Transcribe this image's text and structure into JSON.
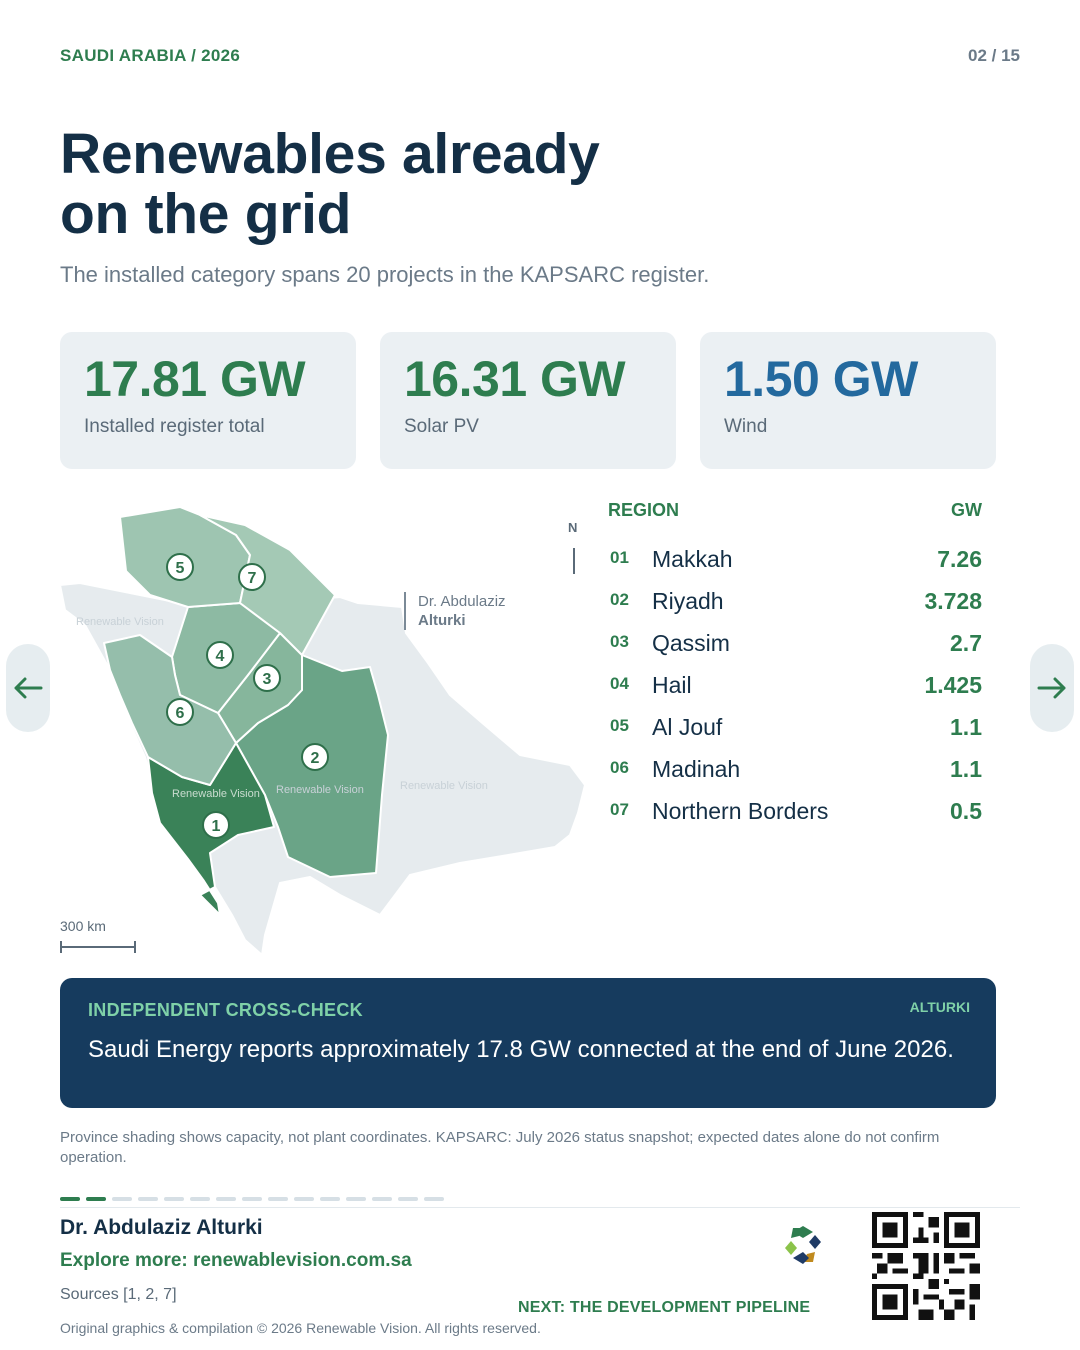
{
  "header": {
    "eyebrow": "SAUDI ARABIA / 2026",
    "page": "02 / 15"
  },
  "title": {
    "line1": "Renewables already",
    "line2": "on the grid"
  },
  "subtitle": "The installed category spans 20 projects in the KAPSARC register.",
  "kpis": [
    {
      "value": "17.81 GW",
      "label": "Installed register total"
    },
    {
      "value": "16.31 GW",
      "label": "Solar PV"
    },
    {
      "value": "1.50 GW",
      "label": "Wind"
    }
  ],
  "map": {
    "north": "N",
    "scale": "300 km",
    "attribution": {
      "line1": "Dr. Abdulaziz",
      "line2": "Alturki"
    },
    "watermark": "Renewable Vision",
    "markers": [
      "1",
      "2",
      "3",
      "4",
      "5",
      "6",
      "7"
    ],
    "colors": {
      "land": "#e6ebee",
      "rank1": "#3a8258",
      "rank2": "#6aa487",
      "rank3": "#86b69c",
      "rank4": "#95beab",
      "rank5": "#9ec5b1"
    }
  },
  "table": {
    "header_region": "REGION",
    "header_gw": "GW",
    "rows": [
      {
        "idx": "01",
        "region": "Makkah",
        "gw": "7.26"
      },
      {
        "idx": "02",
        "region": "Riyadh",
        "gw": "3.728"
      },
      {
        "idx": "03",
        "region": "Qassim",
        "gw": "2.7"
      },
      {
        "idx": "04",
        "region": "Hail",
        "gw": "1.425"
      },
      {
        "idx": "05",
        "region": "Al Jouf",
        "gw": "1.1"
      },
      {
        "idx": "06",
        "region": "Madinah",
        "gw": "1.1"
      },
      {
        "idx": "07",
        "region": "Northern Borders",
        "gw": "0.5"
      }
    ]
  },
  "nav": {
    "prev_icon": "arrow-left-icon",
    "next_icon": "arrow-right-icon"
  },
  "callout": {
    "label": "INDEPENDENT CROSS-CHECK",
    "tag": "ALTURKI",
    "text": "Saudi Energy reports approximately 17.8 GW connected at the end of June 2026."
  },
  "footnote": "Province shading shows capacity, not plant coordinates. KAPSARC: July 2026 status snapshot; expected dates alone do not confirm operation.",
  "progress": {
    "current": 2,
    "total": 15
  },
  "footer": {
    "author": "Dr. Abdulaziz Alturki",
    "explore": "Explore more: renewablevision.com.sa",
    "sources": "Sources [1, 2, 7]",
    "copyright": "Original graphics & compilation © 2026 Renewable Vision. All rights reserved.",
    "next": "NEXT: THE DEVELOPMENT PIPELINE"
  },
  "colors": {
    "accent_green": "#2e7d4f",
    "accent_blue": "#23699e",
    "navy": "#163b5e",
    "mint": "#7fd1a8"
  }
}
